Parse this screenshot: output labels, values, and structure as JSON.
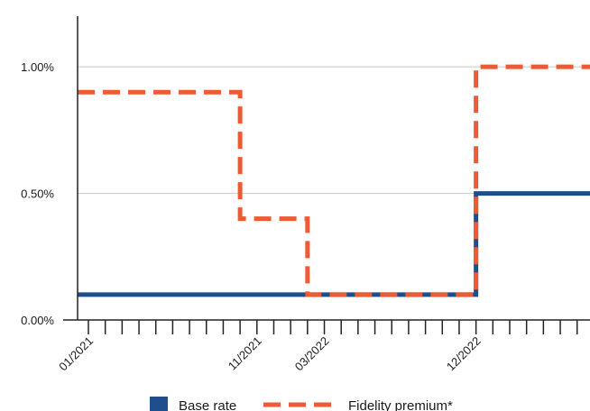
{
  "chart_data": {
    "type": "line",
    "step": true,
    "title": "",
    "xlabel": "",
    "ylabel": "",
    "x_unit": "month",
    "x_range": [
      "2020-12",
      "2023-01"
    ],
    "ylim": [
      0,
      1.2
    ],
    "y_ticks": [
      {
        "value": 0,
        "label": "0.00%"
      },
      {
        "value": 0.5,
        "label": "0.50%"
      },
      {
        "value": 1.0,
        "label": "1.00%"
      }
    ],
    "x_labels": [
      {
        "date": "2021-01",
        "label": "01/2021"
      },
      {
        "date": "2021-11",
        "label": "11/2021"
      },
      {
        "date": "2022-03",
        "label": "03/2022"
      },
      {
        "date": "2022-12",
        "label": "12/2022"
      }
    ],
    "grid": true,
    "legend_position": "bottom",
    "series": [
      {
        "name": "Base rate",
        "color": "#1f4e8c",
        "style": "solid",
        "points": [
          {
            "date": "2020-12",
            "value": 0.1
          },
          {
            "date": "2022-12",
            "value": 0.5
          }
        ]
      },
      {
        "name": "Fidelity premium*",
        "color": "#ec5b33",
        "style": "dashed",
        "points": [
          {
            "date": "2020-12",
            "value": 0.9
          },
          {
            "date": "2021-10",
            "value": 0.4
          },
          {
            "date": "2022-02",
            "value": 0.1
          },
          {
            "date": "2022-12",
            "value": 1.0
          }
        ]
      }
    ]
  }
}
